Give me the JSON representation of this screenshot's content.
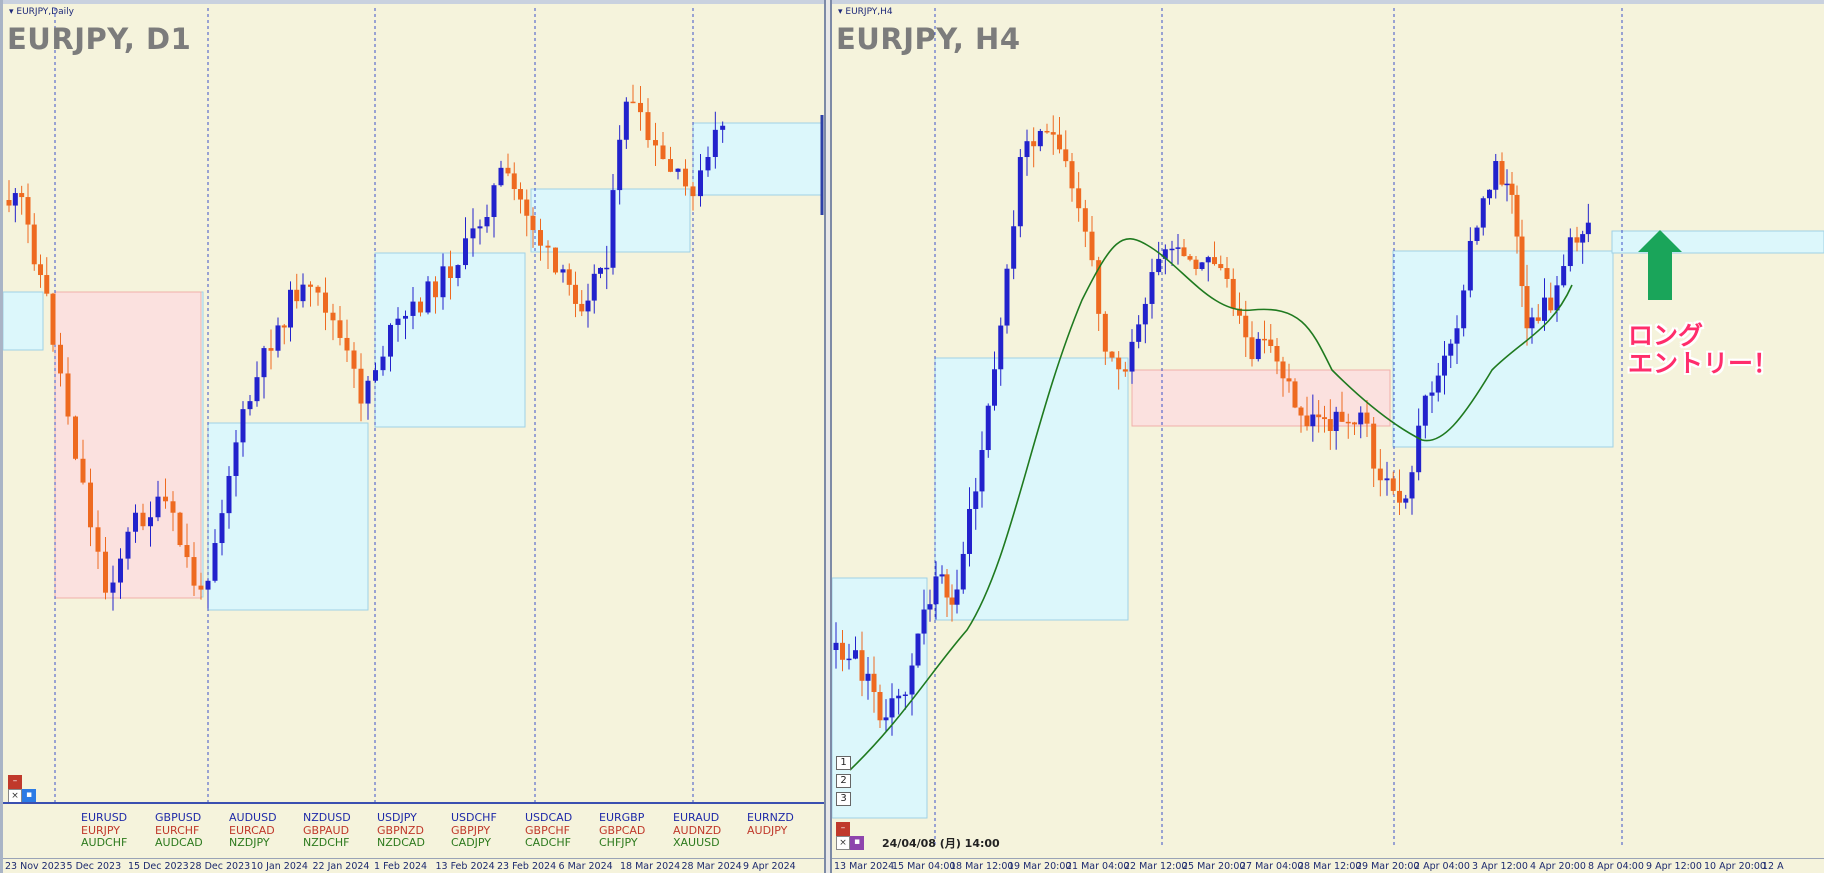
{
  "colors": {
    "bull": "#2222cc",
    "bear": "#ee6a20",
    "bg": "#f5f3dc",
    "blue_zone": "#dcf7fb",
    "red_zone": "#fbe1df",
    "ma": "#1f7a1f",
    "arrow": "#1aa55a"
  },
  "left_chart": {
    "window_title": "EURJPY,Daily",
    "big_title": "EURJPY, D1",
    "x_ticks": [
      "23 Nov 2023",
      "5 Dec 2023",
      "15 Dec 2023",
      "28 Dec 2023",
      "10 Jan 2024",
      "22 Jan 2024",
      "1 Feb 2024",
      "13 Feb 2024",
      "23 Feb 2024",
      "6 Mar 2024",
      "18 Mar 2024",
      "28 Mar 2024",
      "9 Apr 2024"
    ],
    "pairs": [
      [
        "EURUSD",
        "EURJPY",
        "AUDCHF"
      ],
      [
        "GBPUSD",
        "EURCHF",
        "AUDCAD"
      ],
      [
        "AUDUSD",
        "EURCAD",
        "NZDJPY"
      ],
      [
        "NZDUSD",
        "GBPAUD",
        "NZDCHF"
      ],
      [
        "USDJPY",
        "GBPNZD",
        "NZDCAD"
      ],
      [
        "USDCHF",
        "GBPJPY",
        "CADJPY"
      ],
      [
        "USDCAD",
        "GBPCHF",
        "CADCHF"
      ],
      [
        "EURGBP",
        "GBPCAD",
        "CHFJPY"
      ],
      [
        "EURAUD",
        "AUDNZD",
        "XAUUSD"
      ],
      [
        "EURNZD",
        "AUDJPY",
        ""
      ]
    ],
    "ctrl_icons": [
      "minimize-icon",
      "close-icon",
      "menu-icon"
    ]
  },
  "right_chart": {
    "window_title": "EURJPY,H4",
    "big_title": "EURJPY, H4",
    "x_ticks": [
      "13 Mar 2024",
      "15 Mar 04:00",
      "18 Mar 12:00",
      "19 Mar 20:00",
      "21 Mar 04:00",
      "22 Mar 12:00",
      "25 Mar 20:00",
      "27 Mar 04:00",
      "28 Mar 12:00",
      "29 Mar 20:00",
      "2 Apr 04:00",
      "3 Apr 12:00",
      "4 Apr 20:00",
      "8 Apr 04:00",
      "9 Apr 12:00",
      "10 Apr 20:00",
      "12 A"
    ],
    "buttons": [
      "1",
      "2",
      "3"
    ],
    "timestamp": "24/04/08 (月) 14:00",
    "annotation_line1": "ロング",
    "annotation_line2": "エントリー！",
    "arrow_icon": "up-arrow-icon"
  }
}
